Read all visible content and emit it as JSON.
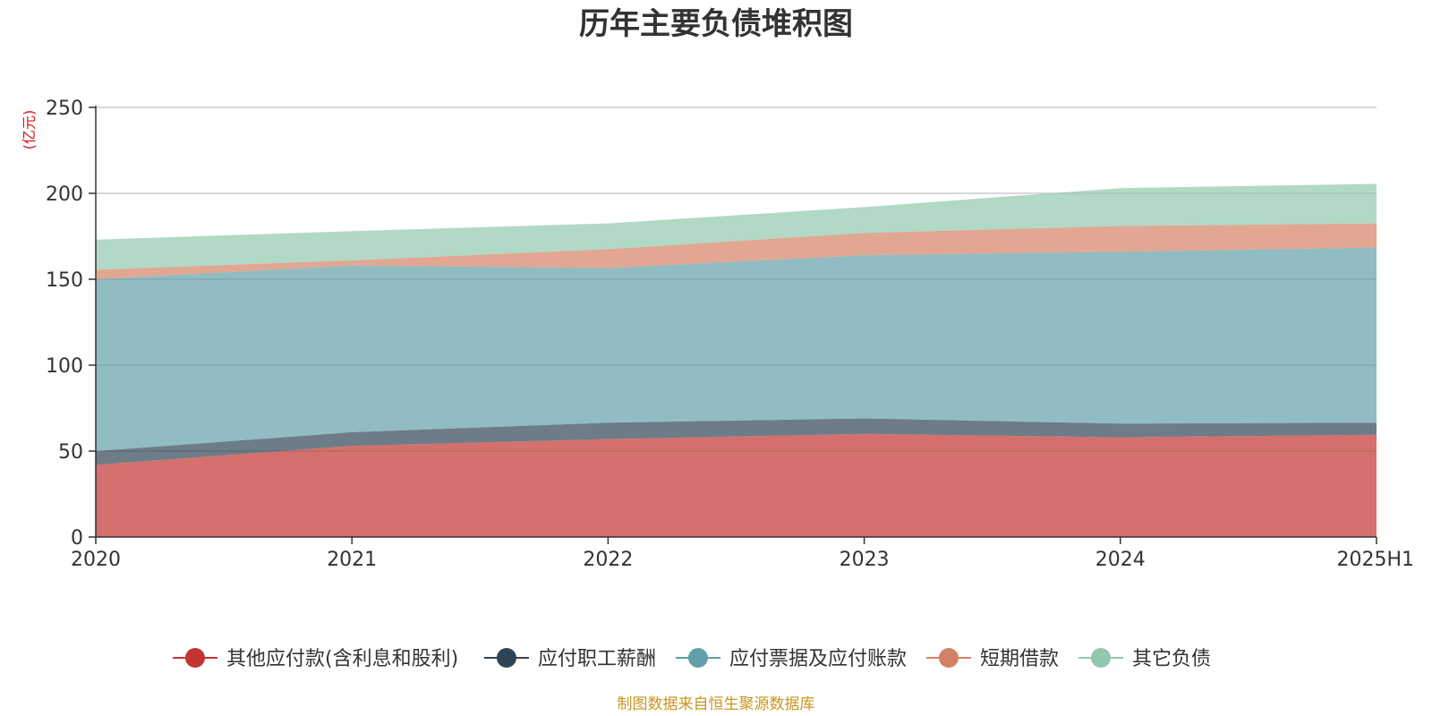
{
  "chart_data": {
    "type": "area",
    "stacked": true,
    "title": "历年主要负债堆积图",
    "unit_label": "(亿元)",
    "categories": [
      "2020",
      "2021",
      "2022",
      "2023",
      "2024",
      "2025H1"
    ],
    "ylim": [
      0,
      250
    ],
    "yticks": [
      0,
      50,
      100,
      150,
      200,
      250
    ],
    "grid": true,
    "legend_position": "bottom",
    "series": [
      {
        "name": "其他应付款(含利息和股利)",
        "color": "#c23531",
        "values": [
          42,
          53,
          57,
          60,
          58,
          59.5
        ]
      },
      {
        "name": "应付职工薪酬",
        "color": "#2f4554",
        "values": [
          8,
          8,
          9.5,
          9,
          8,
          7
        ]
      },
      {
        "name": "应付票据及应付账款",
        "color": "#61a0a8",
        "values": [
          100,
          97,
          90,
          95,
          100,
          102
        ]
      },
      {
        "name": "短期借款",
        "color": "#d48265",
        "values": [
          5.5,
          3,
          11,
          13,
          15,
          14
        ]
      },
      {
        "name": "其它负债",
        "color": "#91c7ae",
        "values": [
          17.5,
          17,
          15,
          15,
          22,
          23
        ]
      }
    ]
  },
  "source_text": "制图数据来自恒生聚源数据库"
}
